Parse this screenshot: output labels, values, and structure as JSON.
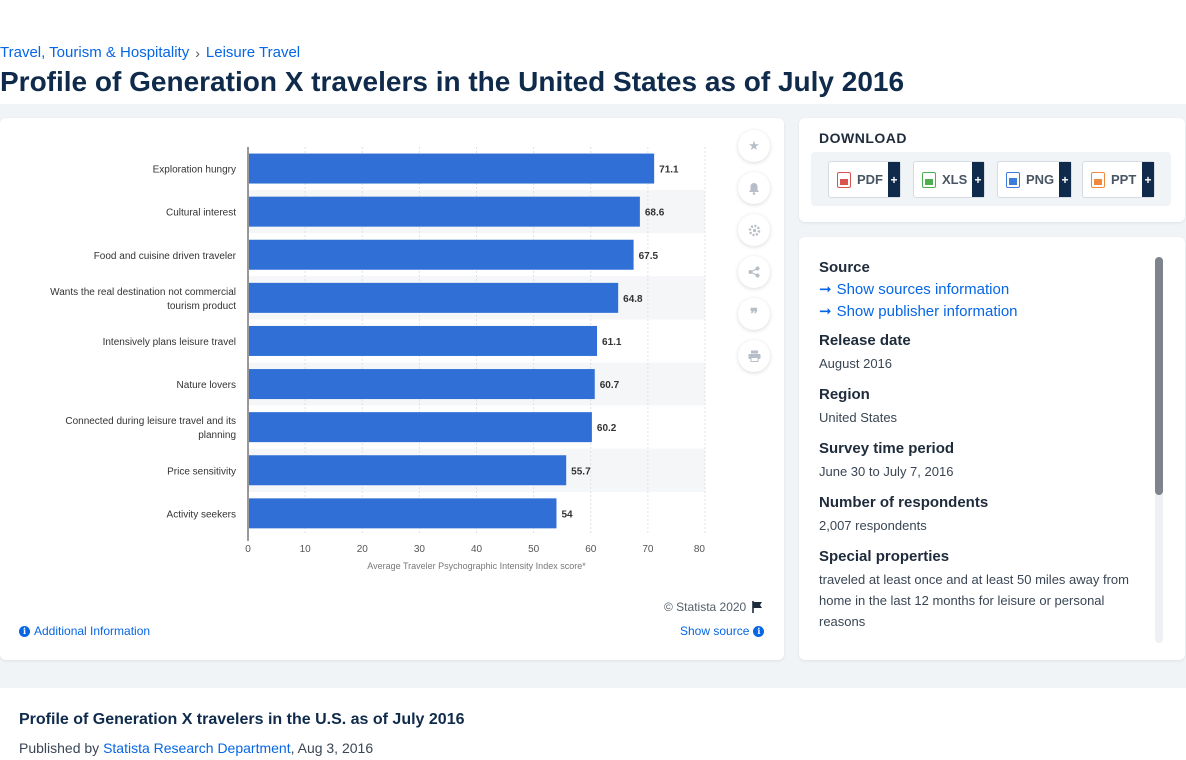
{
  "breadcrumb": {
    "items": [
      "Travel, Tourism & Hospitality",
      "Leisure Travel"
    ]
  },
  "page_title": "Profile of Generation X travelers in the United States as of July 2016",
  "chart_data": {
    "type": "bar",
    "orientation": "horizontal",
    "categories": [
      "Exploration hungry",
      "Cultural interest",
      "Food and cuisine driven traveler",
      "Wants the real destination not commercial tourism product",
      "Intensively plans leisure travel",
      "Nature lovers",
      "Connected during leisure travel and its planning",
      "Price sensitivity",
      "Activity seekers"
    ],
    "category_lines": [
      [
        "Exploration hungry"
      ],
      [
        "Cultural interest"
      ],
      [
        "Food and cuisine driven traveler"
      ],
      [
        "Wants the real destination not commercial",
        "tourism product"
      ],
      [
        "Intensively plans leisure travel"
      ],
      [
        "Nature lovers"
      ],
      [
        "Connected during leisure travel and its",
        "planning"
      ],
      [
        "Price sensitivity"
      ],
      [
        "Activity seekers"
      ]
    ],
    "values": [
      71.1,
      68.6,
      67.5,
      64.8,
      61.1,
      60.7,
      60.2,
      55.7,
      54
    ],
    "value_labels": [
      "71.1",
      "68.6",
      "67.5",
      "64.8",
      "61.1",
      "60.7",
      "60.2",
      "55.7",
      "54"
    ],
    "xlabel": "Average Traveler Psychographic Intensity Index score*",
    "xlim": [
      0,
      80
    ],
    "xticks": [
      0,
      10,
      20,
      30,
      40,
      50,
      60,
      70,
      80
    ],
    "grid": true,
    "bar_color": "#2f6fd6"
  },
  "chart_footer": {
    "copyright": "© Statista 2020",
    "additional_info": "Additional Information",
    "show_source": "Show source"
  },
  "download": {
    "title": "DOWNLOAD",
    "formats": [
      {
        "label": "PDF",
        "color": "#d9534f"
      },
      {
        "label": "XLS",
        "color": "#4caf50"
      },
      {
        "label": "PNG",
        "color": "#3b7dd8"
      },
      {
        "label": "PPT",
        "color": "#f0883e"
      }
    ],
    "plus": "+"
  },
  "source_panel": {
    "source_heading": "Source",
    "show_sources": "Show sources information",
    "show_publisher": "Show publisher information",
    "release_date_heading": "Release date",
    "release_date": "August 2016",
    "region_heading": "Region",
    "region": "United States",
    "survey_period_heading": "Survey time period",
    "survey_period": "June 30 to July 7, 2016",
    "respondents_heading": "Number of respondents",
    "respondents": "2,007 respondents",
    "special_heading": "Special properties",
    "special": "traveled at least once and at least 50 miles away from home in the last 12 months for leisure or personal reasons"
  },
  "publication": {
    "title": "Profile of Generation X travelers in the U.S. as of July 2016",
    "published_by": "Published by",
    "department": "Statista Research Department",
    "date": ", Aug 3, 2016"
  }
}
